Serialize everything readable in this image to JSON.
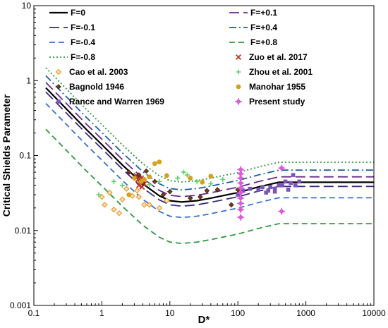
{
  "chart_data": {
    "type": "scatter",
    "title": "",
    "xlabel": "D*",
    "ylabel": "Critical Shields Parameter",
    "xscale": "log",
    "yscale": "log",
    "xlim": [
      0.1,
      10000
    ],
    "ylim": [
      0.001,
      10
    ],
    "x_ticks": [
      "0.1",
      "1",
      "10",
      "100",
      "1000",
      "10000"
    ],
    "y_ticks": [
      "0.001",
      "0.01",
      "0.1",
      "1",
      "10"
    ],
    "grid": false,
    "legend_position": "top-right inside",
    "curves": [
      {
        "name": "F=0",
        "color": "#000000",
        "dash": "solid",
        "factor": 1.0
      },
      {
        "name": "F=+0.1",
        "color": "#6a2a8a",
        "dash": "longdash",
        "factor": 1.18
      },
      {
        "name": "F=-0.1",
        "color": "#3a2a80",
        "dash": "longdash",
        "factor": 0.88
      },
      {
        "name": "F=+0.4",
        "color": "#1f5fa8",
        "dash": "dashdot",
        "factor": 1.45
      },
      {
        "name": "F=-0.4",
        "color": "#3a6fd0",
        "dash": "dash",
        "factor": 0.62
      },
      {
        "name": "F=+0.8",
        "color": "#2e9a3e",
        "dash": "dash",
        "factor": 0.28
      },
      {
        "name": "F=-0.8",
        "color": "#2e9a3e",
        "dash": "dot",
        "factor": 1.85
      }
    ],
    "base_curve": {
      "x": [
        0.15,
        0.3,
        0.6,
        1,
        2,
        4,
        7,
        10,
        15,
        25,
        40,
        70,
        100,
        200,
        400,
        700,
        1000,
        10000
      ],
      "y": [
        0.8,
        0.42,
        0.22,
        0.14,
        0.075,
        0.042,
        0.029,
        0.025,
        0.024,
        0.025,
        0.027,
        0.03,
        0.032,
        0.038,
        0.044,
        0.044,
        0.044,
        0.044
      ]
    },
    "series": [
      {
        "name": "Zuo et al. 2017",
        "marker": "x",
        "color": "#c0392b",
        "points": [
          [
            3.2,
            0.054
          ],
          [
            3.4,
            0.048
          ],
          [
            3.6,
            0.044
          ],
          [
            3.8,
            0.05
          ],
          [
            4.0,
            0.046
          ],
          [
            3.5,
            0.04
          ],
          [
            3.9,
            0.038
          ],
          [
            4.2,
            0.042
          ]
        ]
      },
      {
        "name": "Cao et al. 2003",
        "marker": "diamond-open",
        "color": "#e8a33a",
        "points": [
          [
            1.0,
            0.028
          ],
          [
            1.1,
            0.022
          ],
          [
            1.3,
            0.032
          ],
          [
            1.5,
            0.019
          ],
          [
            1.8,
            0.017
          ],
          [
            2.0,
            0.026
          ],
          [
            2.3,
            0.036
          ],
          [
            2.8,
            0.029
          ],
          [
            3.3,
            0.034
          ],
          [
            3.5,
            0.028
          ],
          [
            4.2,
            0.022
          ],
          [
            5.0,
            0.022
          ],
          [
            7.0,
            0.02
          ],
          [
            9.0,
            0.025
          ]
        ]
      },
      {
        "name": "Zhou et al. 2001",
        "marker": "plus",
        "color": "#5bd06a",
        "points": [
          [
            0.9,
            0.03
          ],
          [
            1.5,
            0.045
          ],
          [
            2.0,
            0.04
          ],
          [
            5.0,
            0.041
          ],
          [
            7.0,
            0.045
          ],
          [
            13.0,
            0.05
          ],
          [
            16.0,
            0.06
          ],
          [
            18.0,
            0.055
          ],
          [
            25.0,
            0.045
          ],
          [
            40.0,
            0.042
          ],
          [
            60.0,
            0.048
          ]
        ]
      },
      {
        "name": "Bagnold 1946",
        "marker": "diamond",
        "color": "#6e3b1e",
        "points": [
          [
            2.5,
            0.06
          ],
          [
            3.0,
            0.05
          ],
          [
            3.5,
            0.055
          ],
          [
            4.0,
            0.043
          ],
          [
            4.5,
            0.062
          ],
          [
            6.0,
            0.045
          ],
          [
            8.0,
            0.03
          ],
          [
            10.0,
            0.033
          ],
          [
            20.0,
            0.027
          ],
          [
            28.0,
            0.028
          ],
          [
            35.0,
            0.034
          ],
          [
            50.0,
            0.035
          ],
          [
            80.0,
            0.022
          ],
          [
            100.0,
            0.035
          ]
        ]
      },
      {
        "name": "Manohar 1955",
        "marker": "circle",
        "color": "#d6a11a",
        "points": [
          [
            2.5,
            0.03
          ],
          [
            3.0,
            0.05
          ],
          [
            3.8,
            0.045
          ],
          [
            4.2,
            0.048
          ],
          [
            5.0,
            0.052
          ],
          [
            6.0,
            0.078
          ],
          [
            7.0,
            0.082
          ],
          [
            9.0,
            0.054
          ],
          [
            20.0,
            0.05
          ],
          [
            30.0,
            0.044
          ],
          [
            40.0,
            0.053
          ]
        ]
      },
      {
        "name": "Rance and Warren 1969",
        "marker": "square",
        "color": "#7a55b8",
        "points": [
          [
            100,
            0.03
          ],
          [
            120,
            0.034
          ],
          [
            150,
            0.036
          ],
          [
            200,
            0.035
          ],
          [
            230,
            0.038
          ],
          [
            260,
            0.032
          ],
          [
            300,
            0.038
          ],
          [
            350,
            0.033
          ],
          [
            400,
            0.04
          ],
          [
            450,
            0.04
          ],
          [
            500,
            0.045
          ],
          [
            550,
            0.035
          ],
          [
            600,
            0.043
          ],
          [
            650,
            0.055
          ],
          [
            700,
            0.04
          ],
          [
            800,
            0.045
          ],
          [
            350,
            0.036
          ],
          [
            280,
            0.034
          ]
        ]
      },
      {
        "name": "Present study",
        "marker": "diamond-plus",
        "color": "#d75fd6",
        "points": [
          [
            110,
            0.015
          ],
          [
            110,
            0.019
          ],
          [
            110,
            0.023
          ],
          [
            110,
            0.027
          ],
          [
            110,
            0.032
          ],
          [
            110,
            0.037
          ],
          [
            110,
            0.043
          ],
          [
            110,
            0.05
          ],
          [
            110,
            0.057
          ],
          [
            110,
            0.065
          ],
          [
            440,
            0.068
          ],
          [
            440,
            0.018
          ]
        ]
      }
    ]
  }
}
